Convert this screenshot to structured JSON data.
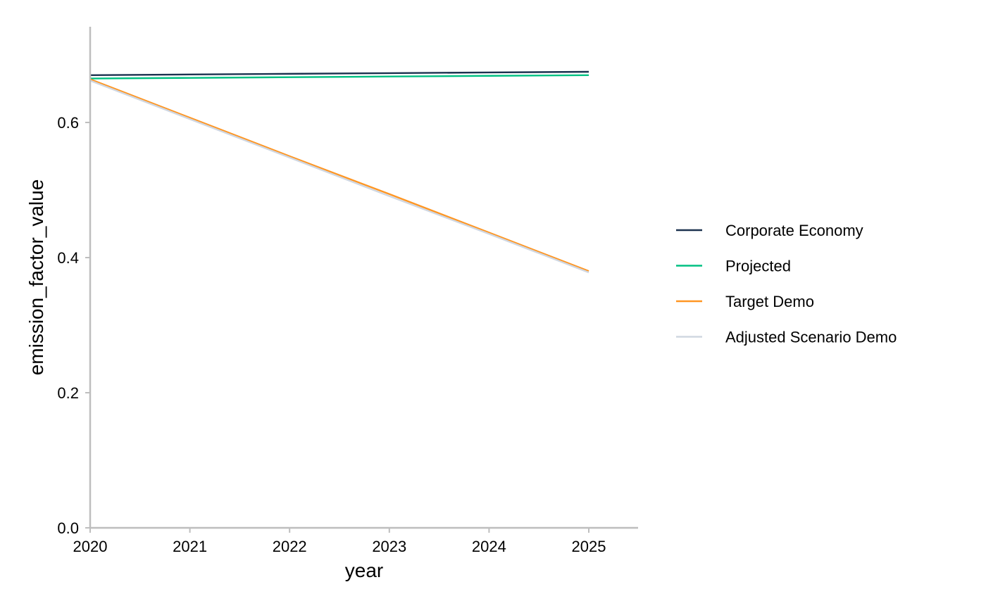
{
  "chart_data": {
    "type": "line",
    "title": "",
    "xlabel": "year",
    "ylabel": "emission_factor_value",
    "x": [
      2020,
      2021,
      2022,
      2023,
      2024,
      2025
    ],
    "xlim": [
      2020,
      2025.5
    ],
    "ylim": [
      0,
      0.74
    ],
    "x_ticks": [
      "2020",
      "2021",
      "2022",
      "2023",
      "2024",
      "2025"
    ],
    "y_ticks": [
      "0.0",
      "0.2",
      "0.4",
      "0.6"
    ],
    "y_tick_values": [
      0,
      0.2,
      0.4,
      0.6
    ],
    "grid": false,
    "legend_position": "right",
    "series": [
      {
        "name": "Corporate Economy",
        "color": "#1b324f",
        "values": [
          0.67,
          0.671,
          0.672,
          0.673,
          0.674,
          0.675
        ]
      },
      {
        "name": "Projected",
        "color": "#00c082",
        "values": [
          0.665,
          0.666,
          0.667,
          0.668,
          0.669,
          0.67
        ]
      },
      {
        "name": "Target Demo",
        "color": "#ff9623",
        "values": [
          0.664,
          0.607,
          0.55,
          0.494,
          0.437,
          0.38
        ]
      },
      {
        "name": "Adjusted Scenario Demo",
        "color": "#d0d7e1",
        "values": [
          0.662,
          0.605,
          0.548,
          0.491,
          0.435,
          0.378
        ]
      }
    ]
  }
}
